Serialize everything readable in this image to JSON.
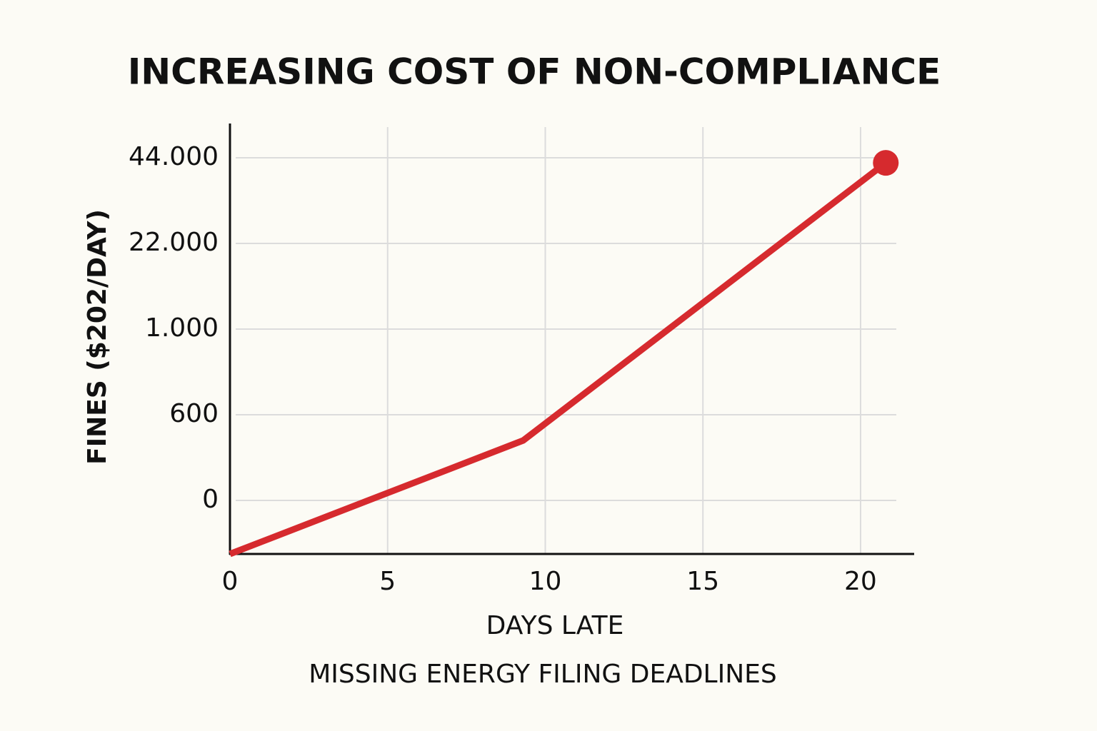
{
  "chart_data": {
    "type": "line",
    "title": "INCREASING COST OF NON-COMPLIANCE",
    "subtitle": "MISSING ENERGY FILING DEADLINES",
    "x_label": "DAYS LATE",
    "y_label": "FINES ($202/DAY)",
    "x": [
      0,
      9.3,
      20.8
    ],
    "series": [
      {
        "name": "Fines",
        "color": "#d62a2e",
        "values": [
          -375,
          420,
          42700
        ]
      }
    ],
    "xlim": [
      0,
      21.7
    ],
    "xticks": [
      0,
      5,
      10,
      15,
      20
    ],
    "ylim": [
      -375,
      52000
    ],
    "yticks": [
      0,
      600,
      {
        "value": 1000,
        "label": "1.000"
      },
      {
        "value": 22000,
        "label": "22.000"
      },
      {
        "value": 44000,
        "label": "44.000"
      }
    ],
    "grid": true
  }
}
